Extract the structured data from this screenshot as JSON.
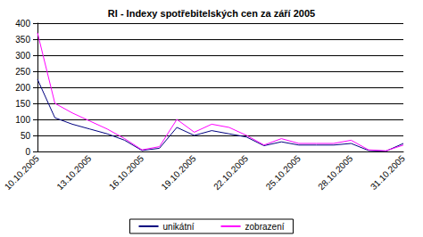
{
  "chart_data": {
    "type": "line",
    "title": "RI - Indexy spotřebitelských cen za září 2005",
    "categories": [
      "10.10.2005",
      null,
      null,
      "13.10.2005",
      null,
      null,
      "16.10.2005",
      null,
      null,
      "19.10.2005",
      null,
      null,
      "22.10.2005",
      null,
      null,
      "25.10.2005",
      null,
      null,
      "28.10.2005",
      null,
      null,
      "31.10.2005"
    ],
    "series": [
      {
        "name": "unikátní",
        "color": "#000080",
        "values": [
          225,
          105,
          85,
          70,
          55,
          35,
          3,
          10,
          75,
          50,
          65,
          55,
          45,
          18,
          30,
          20,
          20,
          20,
          25,
          3,
          1,
          25
        ]
      },
      {
        "name": "zobrazení",
        "color": "#ff00ff",
        "values": [
          370,
          150,
          120,
          95,
          70,
          40,
          5,
          15,
          100,
          60,
          85,
          75,
          50,
          20,
          40,
          25,
          25,
          25,
          35,
          5,
          2,
          20
        ]
      }
    ],
    "ylim": [
      0,
      400
    ],
    "yticks": [
      0,
      50,
      100,
      150,
      200,
      250,
      300,
      350,
      400
    ],
    "grid": true,
    "legend": "bottom",
    "marker": "none"
  }
}
